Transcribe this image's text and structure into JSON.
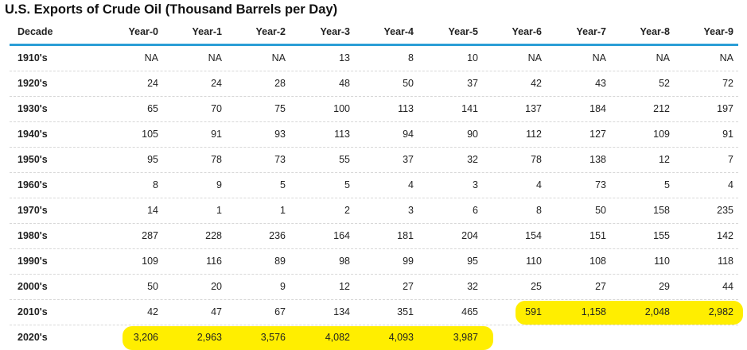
{
  "title": "U.S. Exports of Crude Oil (Thousand Barrels per Day)",
  "header": {
    "decade": "Decade",
    "years": [
      "Year-0",
      "Year-1",
      "Year-2",
      "Year-3",
      "Year-4",
      "Year-5",
      "Year-6",
      "Year-7",
      "Year-8",
      "Year-9"
    ]
  },
  "rows": [
    {
      "decade": "1910's",
      "values": [
        "NA",
        "NA",
        "NA",
        "13",
        "8",
        "10",
        "NA",
        "NA",
        "NA",
        "NA"
      ]
    },
    {
      "decade": "1920's",
      "values": [
        "24",
        "24",
        "28",
        "48",
        "50",
        "37",
        "42",
        "43",
        "52",
        "72"
      ]
    },
    {
      "decade": "1930's",
      "values": [
        "65",
        "70",
        "75",
        "100",
        "113",
        "141",
        "137",
        "184",
        "212",
        "197"
      ]
    },
    {
      "decade": "1940's",
      "values": [
        "105",
        "91",
        "93",
        "113",
        "94",
        "90",
        "112",
        "127",
        "109",
        "91"
      ]
    },
    {
      "decade": "1950's",
      "values": [
        "95",
        "78",
        "73",
        "55",
        "37",
        "32",
        "78",
        "138",
        "12",
        "7"
      ]
    },
    {
      "decade": "1960's",
      "values": [
        "8",
        "9",
        "5",
        "5",
        "4",
        "3",
        "4",
        "73",
        "5",
        "4"
      ]
    },
    {
      "decade": "1970's",
      "values": [
        "14",
        "1",
        "1",
        "2",
        "3",
        "6",
        "8",
        "50",
        "158",
        "235"
      ]
    },
    {
      "decade": "1980's",
      "values": [
        "287",
        "228",
        "236",
        "164",
        "181",
        "204",
        "154",
        "151",
        "155",
        "142"
      ]
    },
    {
      "decade": "1990's",
      "values": [
        "109",
        "116",
        "89",
        "98",
        "99",
        "95",
        "110",
        "108",
        "110",
        "118"
      ]
    },
    {
      "decade": "2000's",
      "values": [
        "50",
        "20",
        "9",
        "12",
        "27",
        "32",
        "25",
        "27",
        "29",
        "44"
      ]
    },
    {
      "decade": "2010's",
      "values": [
        "42",
        "47",
        "67",
        "134",
        "351",
        "465",
        "591",
        "1,158",
        "2,048",
        "2,982"
      ]
    },
    {
      "decade": "2020's",
      "values": [
        "3,206",
        "2,963",
        "3,576",
        "4,082",
        "4,093",
        "3,987",
        "",
        "",
        "",
        ""
      ]
    }
  ],
  "highlight_color": "#ffee00",
  "accent_color": "#2b9ed6"
}
